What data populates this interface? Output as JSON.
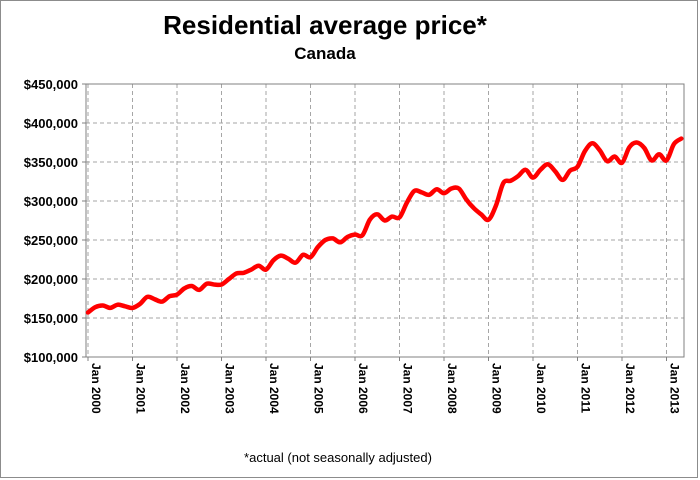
{
  "chart_data": {
    "type": "line",
    "title": "Residential average price*",
    "subtitle": "Canada",
    "footnote": "*actual (not seasonally adjusted)",
    "xlabel": "",
    "ylabel": "",
    "ylim": [
      100000,
      450000
    ],
    "y_ticks": [
      "$100,000",
      "$150,000",
      "$200,000",
      "$250,000",
      "$300,000",
      "$350,000",
      "$400,000",
      "$450,000"
    ],
    "x_ticks": [
      "Jan 2000",
      "Jan 2001",
      "Jan 2002",
      "Jan 2003",
      "Jan 2004",
      "Jan 2005",
      "Jan 2006",
      "Jan 2007",
      "Jan 2008",
      "Jan 2009",
      "Jan 2010",
      "Jan 2011",
      "Jan 2012",
      "Jan 2013"
    ],
    "grid": true,
    "line_color": "#ff0000",
    "series": [
      {
        "x": [
          "Jan 2000",
          "Mar 2000",
          "May 2000",
          "Jul 2000",
          "Sep 2000",
          "Nov 2000",
          "Jan 2001",
          "Mar 2001",
          "May 2001",
          "Jul 2001",
          "Sep 2001",
          "Nov 2001",
          "Jan 2002",
          "Mar 2002",
          "May 2002",
          "Jul 2002",
          "Sep 2002",
          "Nov 2002",
          "Jan 2003",
          "Mar 2003",
          "May 2003",
          "Jul 2003",
          "Sep 2003",
          "Nov 2003",
          "Jan 2004",
          "Mar 2004",
          "May 2004",
          "Jul 2004",
          "Sep 2004",
          "Nov 2004",
          "Jan 2005",
          "Mar 2005",
          "May 2005",
          "Jul 2005",
          "Sep 2005",
          "Nov 2005",
          "Jan 2006",
          "Mar 2006",
          "May 2006",
          "Jul 2006",
          "Sep 2006",
          "Nov 2006",
          "Jan 2007",
          "Mar 2007",
          "May 2007",
          "Jul 2007",
          "Sep 2007",
          "Nov 2007",
          "Jan 2008",
          "Mar 2008",
          "May 2008",
          "Jul 2008",
          "Sep 2008",
          "Nov 2008",
          "Jan 2009",
          "Mar 2009",
          "May 2009",
          "Jul 2009",
          "Sep 2009",
          "Nov 2009",
          "Jan 2010",
          "Mar 2010",
          "May 2010",
          "Jul 2010",
          "Sep 2010",
          "Nov 2010",
          "Jan 2011",
          "Mar 2011",
          "May 2011",
          "Jul 2011",
          "Sep 2011",
          "Nov 2011",
          "Jan 2012",
          "Mar 2012",
          "May 2012",
          "Jul 2012",
          "Sep 2012",
          "Nov 2012",
          "Jan 2013",
          "Mar 2013",
          "May 2013"
        ],
        "values": [
          157000,
          164000,
          166000,
          163000,
          167000,
          165000,
          163000,
          168000,
          177000,
          174000,
          171000,
          178000,
          180000,
          188000,
          191000,
          186000,
          194000,
          193000,
          193000,
          200000,
          207000,
          208000,
          212000,
          217000,
          212000,
          224000,
          230000,
          226000,
          221000,
          231000,
          228000,
          241000,
          250000,
          252000,
          247000,
          254000,
          257000,
          256000,
          276000,
          283000,
          275000,
          280000,
          279000,
          298000,
          313000,
          311000,
          308000,
          315000,
          310000,
          316000,
          316000,
          302000,
          291000,
          283000,
          276000,
          294000,
          323000,
          326000,
          332000,
          340000,
          330000,
          340000,
          347000,
          338000,
          327000,
          339000,
          344000,
          364000,
          374000,
          365000,
          351000,
          357000,
          349000,
          369000,
          375000,
          368000,
          352000,
          360000,
          352000,
          373000,
          380000
        ]
      }
    ]
  }
}
